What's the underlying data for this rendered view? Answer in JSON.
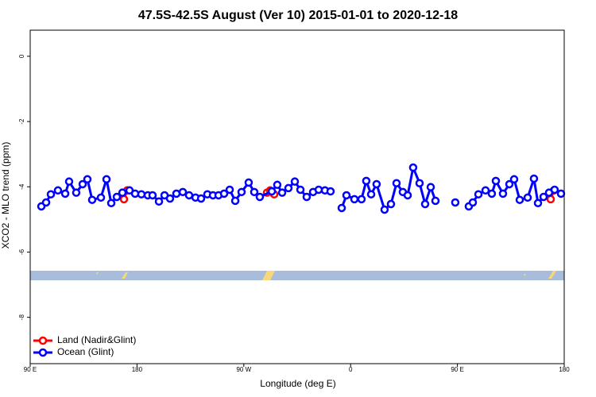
{
  "chart_data": {
    "type": "line",
    "title": "47.5S-42.5S August (Ver 10)   2015-01-01 to 2020-12-18",
    "x_label": "Longitude (deg E)",
    "y_label": "XCO2 - MLO trend (ppm)",
    "xlim": [
      90,
      540
    ],
    "ylim": [
      -9.42,
      0.8
    ],
    "xticks": [
      {
        "value": 90,
        "label": "90 E"
      },
      180,
      {
        "value": 270,
        "label": "90 W"
      },
      {
        "value": 360,
        "label": "0"
      },
      {
        "value": 450,
        "label": "90 E"
      },
      {
        "value": 540,
        "label": "180"
      }
    ],
    "yticks": [
      0,
      -2,
      -4,
      -6,
      -8
    ],
    "legend": "bottomleft",
    "series": [
      {
        "name": "Land (Nadir&Glint)",
        "color": "#ff0000",
        "x": [
          169.0,
          171.7,
          null,
          289.5,
          292.2,
          295.6,
          null,
          528.6,
          531.3
        ],
        "values": [
          -4.38,
          -4.11,
          null,
          -4.18,
          -4.11,
          -4.23,
          null,
          -4.38,
          -4.11
        ]
      },
      {
        "name": "Ocean (Glint)",
        "color": "#0000ff",
        "x": [
          99.4,
          103.4,
          107.4,
          113.4,
          119.5,
          122.8,
          128.8,
          134.2,
          138.2,
          142.2,
          149.6,
          154.3,
          158.3,
          163.0,
          167.7,
          173.7,
          178.4,
          183.7,
          189.1,
          193.1,
          198.5,
          203.2,
          207.8,
          213.2,
          218.6,
          223.9,
          229.3,
          234.0,
          239.3,
          244.0,
          248.7,
          253.4,
          258.1,
          262.8,
          268.1,
          274.1,
          278.8,
          283.5,
          293.6,
          298.2,
          302.3,
          307.6,
          313.0,
          317.7,
          323.0,
          328.4,
          333.1,
          338.4,
          343.1,
          null,
          352.5,
          356.5,
          363.2,
          369.2,
          373.2,
          377.3,
          381.9,
          388.6,
          394.0,
          398.7,
          404.0,
          408.1,
          412.7,
          418.1,
          422.8,
          427.5,
          431.5,
          null,
          448.2,
          null,
          459.6,
          463.0,
          467.7,
          473.7,
          479.0,
          482.4,
          488.4,
          493.8,
          497.8,
          502.5,
          509.2,
          514.5,
          517.9,
          522.6,
          527.2,
          531.9,
          537.3
        ],
        "values": [
          -4.6,
          -4.48,
          -4.23,
          -4.11,
          -4.21,
          -3.84,
          -4.18,
          -3.92,
          -3.77,
          -4.4,
          -4.33,
          -3.77,
          -4.5,
          -4.31,
          -4.18,
          -4.11,
          -4.21,
          -4.23,
          -4.26,
          -4.26,
          -4.45,
          -4.26,
          -4.36,
          -4.21,
          -4.16,
          -4.26,
          -4.33,
          -4.36,
          -4.23,
          -4.26,
          -4.26,
          -4.21,
          -4.09,
          -4.43,
          -4.16,
          -3.87,
          -4.16,
          -4.31,
          -4.14,
          -3.94,
          -4.18,
          -4.04,
          -3.84,
          -4.09,
          -4.31,
          -4.16,
          -4.09,
          -4.11,
          -4.14,
          null,
          -4.65,
          -4.26,
          -4.38,
          -4.38,
          -3.82,
          -4.23,
          -3.92,
          -4.7,
          -4.53,
          -3.89,
          -4.16,
          -4.26,
          -3.41,
          -3.89,
          -4.53,
          -4.01,
          -4.43,
          null,
          -4.48,
          null,
          -4.6,
          -4.48,
          -4.23,
          -4.11,
          -4.21,
          -3.82,
          -4.21,
          -3.92,
          -3.77,
          -4.4,
          -4.33,
          -3.75,
          -4.5,
          -4.31,
          -4.18,
          -4.09,
          -4.21
        ]
      }
    ]
  }
}
